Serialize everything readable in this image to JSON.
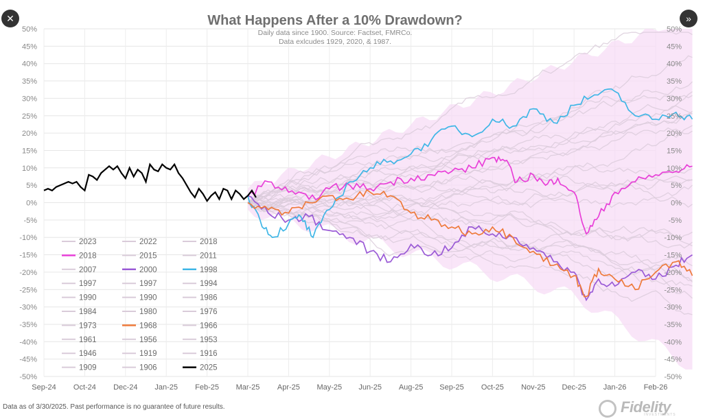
{
  "nav": {
    "close_icon": "close-icon",
    "next_icon": "double-chevron-right-icon",
    "close_glyph": "✕",
    "next_glyph": "»"
  },
  "footnote": "Data as of 3/30/2025. Past performance is no guarantee of future results.",
  "brand": {
    "name": "Fidelity",
    "sub": "INVESTMENTS"
  },
  "chart_data": {
    "type": "line",
    "title": "What Happens After a 10% Drawdown?",
    "subtitle_lines": [
      "Daily data since 1900.  Source: Factset, FMRCo.",
      "Data exlcudes 1929, 2020, & 1987."
    ],
    "x_ticks": [
      "Sep-24",
      "Oct-24",
      "Dec-24",
      "Jan-25",
      "Feb-25",
      "Mar-25",
      "Apr-25",
      "May-25",
      "Jun-25",
      "Aug-25",
      "Sep-25",
      "Oct-25",
      "Nov-25",
      "Dec-25",
      "Jan-26",
      "Feb-26"
    ],
    "y_ticks": [
      "50%",
      "45%",
      "40%",
      "35%",
      "30%",
      "25%",
      "20%",
      "15%",
      "10%",
      "5%",
      "0%",
      "-5%",
      "-10%",
      "-15%",
      "-20%",
      "-25%",
      "-30%",
      "-35%",
      "-40%",
      "-45%",
      "-50%"
    ],
    "ylim": [
      -50,
      50
    ],
    "grid": true,
    "legend_placement": "bottom-left",
    "colors": {
      "history": "#d9cbd9",
      "band": "#f7dcf5",
      "c2018": "#e83fd8",
      "c2000": "#9a5ad6",
      "c1998": "#3fb6e6",
      "c1968": "#ee7a3a",
      "c2025": "#000000"
    },
    "legend": [
      [
        "2023",
        "2022",
        "2018"
      ],
      [
        "2018",
        "2015",
        "2011"
      ],
      [
        "2007",
        "2000",
        "1998"
      ],
      [
        "1997",
        "1997",
        "1994"
      ],
      [
        "1990",
        "1990",
        "1986"
      ],
      [
        "1984",
        "1980",
        "1976"
      ],
      [
        "1973",
        "1968",
        "1966"
      ],
      [
        "1961",
        "1956",
        "1953"
      ],
      [
        "1946",
        "1919",
        "1916"
      ],
      [
        "1909",
        "1906",
        "2025"
      ]
    ],
    "legend_colors": [
      [
        "history",
        "history",
        "history"
      ],
      [
        "c2018",
        "history",
        "history"
      ],
      [
        "history",
        "c2000",
        "c1998"
      ],
      [
        "history",
        "history",
        "history"
      ],
      [
        "history",
        "history",
        "history"
      ],
      [
        "history",
        "history",
        "history"
      ],
      [
        "history",
        "c1968",
        "history"
      ],
      [
        "history",
        "history",
        "history"
      ],
      [
        "history",
        "history",
        "history"
      ],
      [
        "history",
        "history",
        "c2025"
      ]
    ],
    "series_2025": {
      "name": "2025",
      "x": [
        0,
        0.1,
        0.2,
        0.3,
        0.4,
        0.5,
        0.6,
        0.7,
        0.8,
        0.9,
        1,
        1.1,
        1.2,
        1.3,
        1.4,
        1.5,
        1.6,
        1.7,
        1.8,
        1.9,
        2,
        2.1,
        2.2,
        2.3,
        2.4,
        2.5,
        2.6,
        2.7,
        2.8,
        2.9,
        3,
        3.1,
        3.2,
        3.3,
        3.4,
        3.5,
        3.6,
        3.7,
        3.8,
        3.9,
        4,
        4.1,
        4.2,
        4.3,
        4.4,
        4.5,
        4.6,
        4.7,
        4.8,
        4.9,
        5,
        5.1,
        5.2
      ],
      "y": [
        3.5,
        4,
        3.5,
        4.5,
        5,
        5.5,
        6,
        5.5,
        6,
        4.5,
        3.5,
        8,
        7.5,
        6.5,
        8.5,
        9.5,
        10.5,
        9.5,
        10.5,
        8.5,
        7,
        10,
        7.5,
        9.5,
        8.5,
        6,
        11,
        9.5,
        9,
        11,
        10,
        9.5,
        11,
        8.5,
        7,
        5,
        3,
        1.5,
        4,
        2.5,
        0.5,
        2,
        3,
        1,
        4,
        3.5,
        1,
        3.5,
        2.5,
        1,
        2,
        3.5,
        1.5
      ]
    },
    "series_highlight": [
      {
        "name": "2018",
        "color_key": "c2018",
        "x": [
          5,
          5.5,
          6,
          6.5,
          7,
          7.5,
          8,
          8.5,
          9,
          9.5,
          10,
          10.5,
          11,
          11.3,
          11.6,
          12,
          12.3,
          12.6,
          13,
          13.3,
          13.6,
          14,
          14.5,
          15,
          15.5,
          15.9
        ],
        "y": [
          2,
          6,
          3,
          1,
          4,
          5,
          4,
          6,
          7,
          8,
          9,
          10,
          13,
          12,
          6,
          8,
          5,
          7,
          3,
          -9,
          -4,
          3,
          6,
          8,
          9,
          10.5
        ]
      },
      {
        "name": "2000",
        "color_key": "c2000",
        "x": [
          5,
          5.5,
          6,
          6.5,
          7,
          7.5,
          8,
          8.5,
          9,
          9.5,
          10,
          10.5,
          11,
          11.5,
          12,
          12.5,
          13,
          13.3,
          13.6,
          14,
          14.5,
          15,
          15.5,
          15.9
        ],
        "y": [
          2,
          -3,
          -5,
          -4,
          -8,
          -10,
          -14,
          -17,
          -12,
          -15,
          -13,
          -7,
          -9,
          -10,
          -13,
          -17,
          -20,
          -28,
          -22,
          -24,
          -20,
          -22,
          -18,
          -15
        ]
      },
      {
        "name": "1998",
        "color_key": "c1998",
        "x": [
          5,
          5.3,
          5.6,
          6,
          6.3,
          6.6,
          7,
          7.5,
          8,
          8.5,
          9,
          9.5,
          10,
          10.5,
          11,
          11.5,
          12,
          12.5,
          13,
          13.5,
          14,
          14.5,
          15,
          15.5,
          15.9
        ],
        "y": [
          2,
          -5,
          -10,
          -6,
          -4,
          -10,
          -2,
          6,
          10,
          12,
          14,
          18,
          22,
          19,
          24,
          22,
          27,
          23,
          28,
          31,
          32,
          25,
          24,
          26,
          24
        ]
      },
      {
        "name": "1968",
        "color_key": "c1968",
        "x": [
          5,
          5.5,
          6,
          6.5,
          7,
          7.5,
          8,
          8.5,
          9,
          9.5,
          10,
          10.5,
          11,
          11.5,
          12,
          12.5,
          13,
          13.3,
          13.6,
          14,
          14.5,
          15,
          15.5,
          15.9
        ],
        "y": [
          0,
          -2,
          -3,
          0,
          2,
          1,
          3,
          2,
          -3,
          -5,
          -7,
          -9,
          -7,
          -10,
          -14,
          -18,
          -21,
          -27,
          -19,
          -22,
          -25,
          -20,
          -17,
          -21
        ]
      }
    ]
  }
}
